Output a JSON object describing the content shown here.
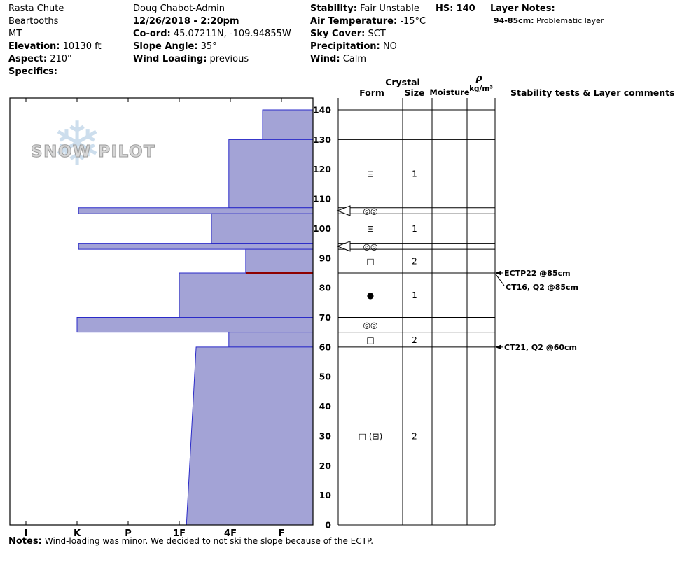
{
  "header": {
    "site": {
      "name": "Rasta Chute",
      "range": "Beartooths",
      "state": "MT",
      "elevation_label": "Elevation:",
      "elevation_value": "10130 ft",
      "aspect_label": "Aspect:",
      "aspect_value": "210°",
      "specifics_label": "Specifics:"
    },
    "observer": {
      "name": "Doug Chabot-Admin",
      "datetime": "12/26/2018 - 2:20pm",
      "coord_label": "Co-ord:",
      "coord_value": "45.07211N, -109.94855W",
      "slope_angle_label": "Slope Angle:",
      "slope_angle_value": "35°",
      "wind_loading_label": "Wind Loading:",
      "wind_loading_value": "previous"
    },
    "conditions": {
      "stability_label": "Stability:",
      "stability_value": "Fair Unstable",
      "air_temp_label": "Air Temperature:",
      "air_temp_value": "-15°C",
      "sky_label": "Sky Cover:",
      "sky_value": "SCT",
      "precip_label": "Precipitation:",
      "precip_value": "NO",
      "wind_label": "Wind:",
      "wind_value": "Calm"
    },
    "hs_label": "HS:",
    "hs_value": "140",
    "layer_notes_label": "Layer Notes:",
    "layer_note_depth": "94-85cm:",
    "layer_note_text": "Problematic layer"
  },
  "table_headers": {
    "crystal": "Crystal",
    "form": "Form",
    "size": "Size",
    "moisture": "Moisture",
    "rho": "ρ",
    "rho_units": "kg/m³",
    "comments": "Stability tests & Layer comments"
  },
  "logo": {
    "text": "SNOW PILOT",
    "snowflake_icon": "❄"
  },
  "notes": {
    "label": "Notes:",
    "text": "Wind-loading was minor. We decided to not ski the slope because of the ECTP."
  },
  "chart_data": {
    "type": "bar",
    "subtype": "snow-profile-hardness",
    "title": "Snow pit hardness profile",
    "hs_cm": 140,
    "depth_unit": "cm",
    "depth_ticks": [
      0,
      10,
      20,
      30,
      40,
      50,
      60,
      70,
      80,
      90,
      100,
      110,
      120,
      130,
      140
    ],
    "hardness_labels": [
      "I",
      "K",
      "P",
      "1F",
      "4F",
      "F"
    ],
    "layers": [
      {
        "top_cm": 140,
        "bottom_cm": 130,
        "hardness_units": 4.63,
        "form": "",
        "size": ""
      },
      {
        "top_cm": 130,
        "bottom_cm": 107,
        "hardness_units": 3.97,
        "form": "⊟",
        "size": "1"
      },
      {
        "top_cm": 107,
        "bottom_cm": 105,
        "hardness_units": 1.03,
        "form": "◎◎",
        "size": "",
        "concern_arrow": true
      },
      {
        "top_cm": 105,
        "bottom_cm": 95,
        "hardness_units": 3.63,
        "form": "⊟",
        "size": "1"
      },
      {
        "top_cm": 95,
        "bottom_cm": 93,
        "hardness_units": 1.03,
        "form": "◎◎",
        "size": "",
        "concern_arrow": true
      },
      {
        "top_cm": 93,
        "bottom_cm": 85,
        "hardness_units": 4.3,
        "form": "□",
        "size": "2",
        "flag_bottom": true
      },
      {
        "top_cm": 85,
        "bottom_cm": 70,
        "hardness_units": 3.0,
        "form": "●",
        "size": "1"
      },
      {
        "top_cm": 70,
        "bottom_cm": 65,
        "hardness_units": 1.0,
        "form": "◎◎",
        "size": ""
      },
      {
        "top_cm": 65,
        "bottom_cm": 60,
        "hardness_units": 3.97,
        "form": "□",
        "size": "2"
      },
      {
        "top_cm": 60,
        "bottom_cm": 0,
        "hardness_units": 3.33,
        "hardness_units_bottom": 3.14,
        "form": "□ (⊟)",
        "size": "2"
      }
    ],
    "stability_tests": [
      {
        "depth_cm": 85,
        "label": "ECTP22 @85cm",
        "leader": "horizontal"
      },
      {
        "depth_cm": 85,
        "label": "CT16, Q2 @85cm",
        "leader": "diagonal",
        "text_offset_y": 20
      },
      {
        "depth_cm": 60,
        "label": "CT21, Q2 @60cm",
        "leader": "horizontal"
      }
    ],
    "colors": {
      "bar_fill": "#A3A3D6",
      "bar_stroke": "#2A2AC8",
      "flag_line": "#8E0000",
      "grid": "#000000"
    },
    "legend": "none",
    "grid": "table-rows-at-layer-boundaries"
  }
}
